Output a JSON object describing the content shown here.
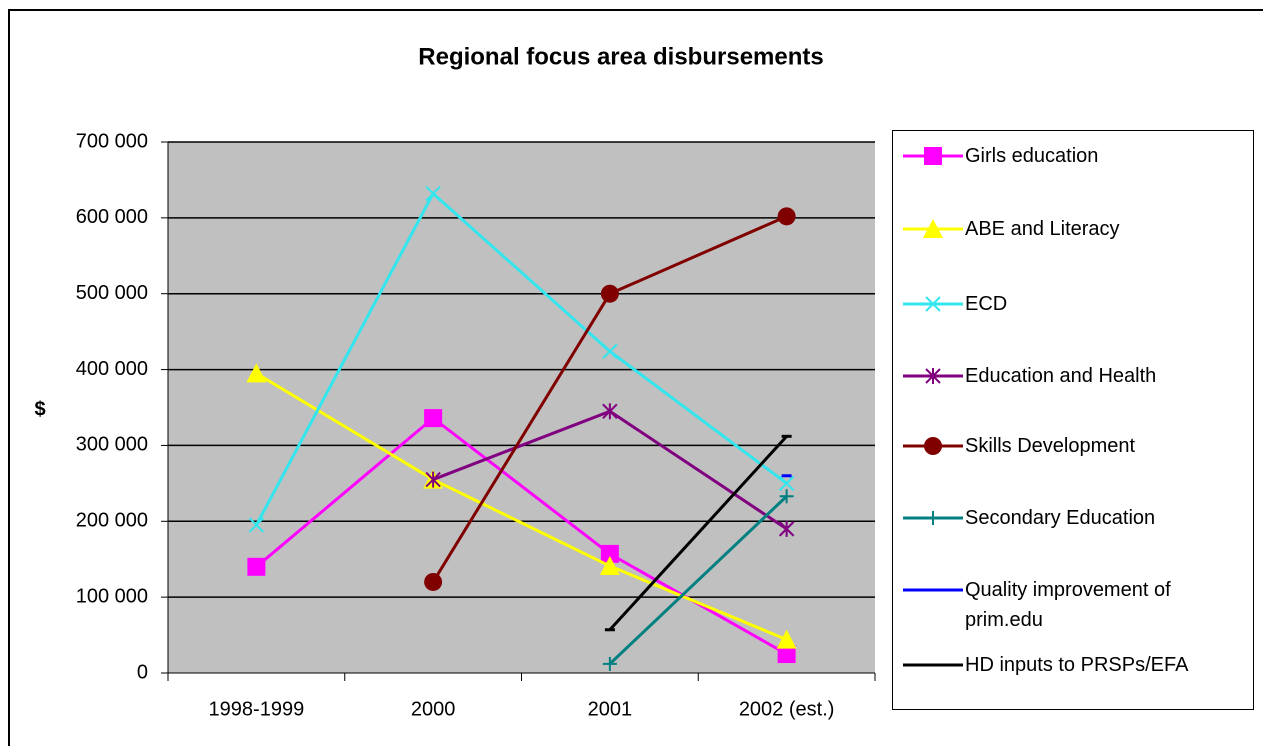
{
  "chart_data": {
    "type": "line",
    "title": "Regional focus area disbursements",
    "y_label": "$",
    "categories": [
      "1998-1999",
      "2000",
      "2001",
      "2002 (est.)"
    ],
    "ylim": [
      0,
      700000
    ],
    "yticks": [
      0,
      {
        "value": 100000,
        "label": "100 000"
      },
      {
        "value": 200000,
        "label": "200 000"
      },
      {
        "value": 300000,
        "label": "300 000"
      },
      {
        "value": 400000,
        "label": "400 000"
      },
      {
        "value": 500000,
        "label": "500 000"
      },
      {
        "value": 600000,
        "label": "600 000"
      },
      {
        "value": 700000,
        "label": "700 000"
      }
    ],
    "grid": true,
    "legend": "right",
    "series": [
      {
        "name": "Girls education",
        "color": "#ff00ff",
        "marker": "square",
        "values": [
          140000,
          336000,
          157000,
          25000
        ]
      },
      {
        "name": "ABE and Literacy",
        "color": "#ffff00",
        "marker": "triangle",
        "values": [
          395000,
          255000,
          141000,
          44000
        ]
      },
      {
        "name": "ECD",
        "color": "#33e6ee",
        "marker": "x",
        "values": [
          195000,
          632000,
          424000,
          250000
        ]
      },
      {
        "name": "Education and Health",
        "color": "#800080",
        "marker": "asterisk",
        "values": [
          null,
          255000,
          345000,
          190000
        ]
      },
      {
        "name": "Skills Development",
        "color": "#800000",
        "marker": "circle",
        "values": [
          null,
          120000,
          500000,
          602000
        ]
      },
      {
        "name": "Secondary Education",
        "color": "#008080",
        "marker": "plus",
        "values": [
          null,
          null,
          12000,
          233000
        ]
      },
      {
        "name": "Quality improvement of prim.edu",
        "color": "#0000ff",
        "marker": "dash",
        "values": [
          null,
          null,
          null,
          260000
        ]
      },
      {
        "name": "HD inputs to PRSPs/EFA",
        "color": "#000000",
        "marker": "dash",
        "values": [
          null,
          null,
          57000,
          312000
        ]
      }
    ]
  }
}
